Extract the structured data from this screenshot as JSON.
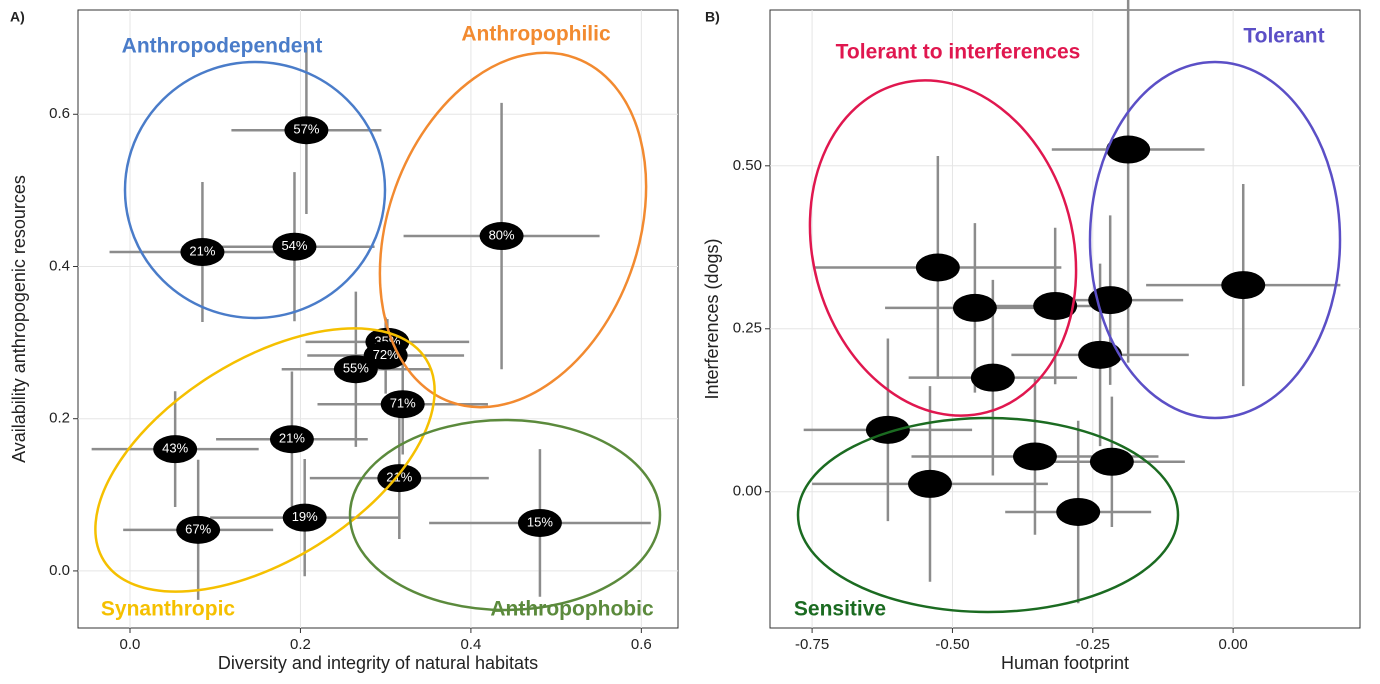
{
  "chart_data": [
    {
      "type": "scatter",
      "panel_label": "A)",
      "x_label": "Diversity and integrity of natural habitats",
      "y_label": "Availability anthropogenic resources",
      "annotations": [
        "Anthropodependent",
        "Anthropophilic",
        "Synanthropic",
        "Anthropophobic"
      ],
      "x": [
        0.207,
        0.085,
        0.193,
        0.436,
        0.302,
        0.265,
        0.3,
        0.32,
        0.053,
        0.19,
        0.316,
        0.08,
        0.205,
        0.481
      ],
      "y": [
        0.579,
        0.419,
        0.426,
        0.44,
        0.301,
        0.265,
        0.283,
        0.219,
        0.16,
        0.173,
        0.122,
        0.054,
        0.07,
        0.063
      ],
      "xerr": [
        0.088,
        0.109,
        0.094,
        0.115,
        0.096,
        0.087,
        0.092,
        0.1,
        0.098,
        0.089,
        0.105,
        0.088,
        0.111,
        0.13
      ],
      "yerr": [
        0.11,
        0.092,
        0.098,
        0.175,
        0.03,
        0.102,
        0.05,
        0.066,
        0.076,
        0.089,
        0.08,
        0.092,
        0.077,
        0.097
      ],
      "labels": [
        "57%",
        "21%",
        "54%",
        "80%",
        "35%",
        "55%",
        "72%",
        "71%",
        "43%",
        "21%",
        "21%",
        "67%",
        "19%",
        "15%"
      ],
      "xlim": [
        -0.061,
        0.643
      ],
      "ylim": [
        -0.075,
        0.737
      ],
      "xticks": [
        {
          "value": 0,
          "label": "0.0"
        },
        0.2,
        0.4,
        0.6
      ],
      "yticks": [
        {
          "value": 0,
          "label": "0.0"
        },
        0.2,
        0.4,
        0.6
      ],
      "grid": true
    },
    {
      "type": "scatter",
      "panel_label": "B)",
      "x_label": "Human footprint",
      "y_label": "Interferences (dogs)",
      "annotations": [
        "Tolerant to interferences",
        "Tolerant",
        "Sensitive"
      ],
      "x": [
        -0.187,
        0.018,
        -0.526,
        -0.46,
        -0.317,
        -0.219,
        -0.237,
        -0.428,
        -0.615,
        -0.54,
        -0.353,
        -0.216,
        -0.276
      ],
      "y": [
        0.525,
        0.317,
        0.344,
        0.282,
        0.285,
        0.294,
        0.21,
        0.175,
        0.095,
        0.012,
        0.054,
        0.046,
        -0.031
      ],
      "xerr": [
        0.136,
        0.173,
        0.22,
        0.16,
        0.134,
        0.13,
        0.158,
        0.15,
        0.15,
        0.21,
        0.22,
        0.13,
        0.13
      ],
      "yerr": [
        0.327,
        0.155,
        0.171,
        0.13,
        0.12,
        0.13,
        0.14,
        0.15,
        0.14,
        0.15,
        0.12,
        0.1,
        0.14
      ],
      "xlim": [
        -0.825,
        0.226
      ],
      "ylim": [
        -0.209,
        0.739
      ],
      "xticks": [
        {
          "value": -0.75,
          "label": "-0.75"
        },
        {
          "value": -0.5,
          "label": "-0.50"
        },
        -0.25,
        {
          "value": 0,
          "label": "0.00"
        }
      ],
      "yticks": [
        {
          "value": 0,
          "label": "0.00"
        },
        {
          "value": 0.25,
          "label": "0.25"
        },
        {
          "value": 0.5,
          "label": "0.50"
        }
      ],
      "grid": true
    }
  ]
}
